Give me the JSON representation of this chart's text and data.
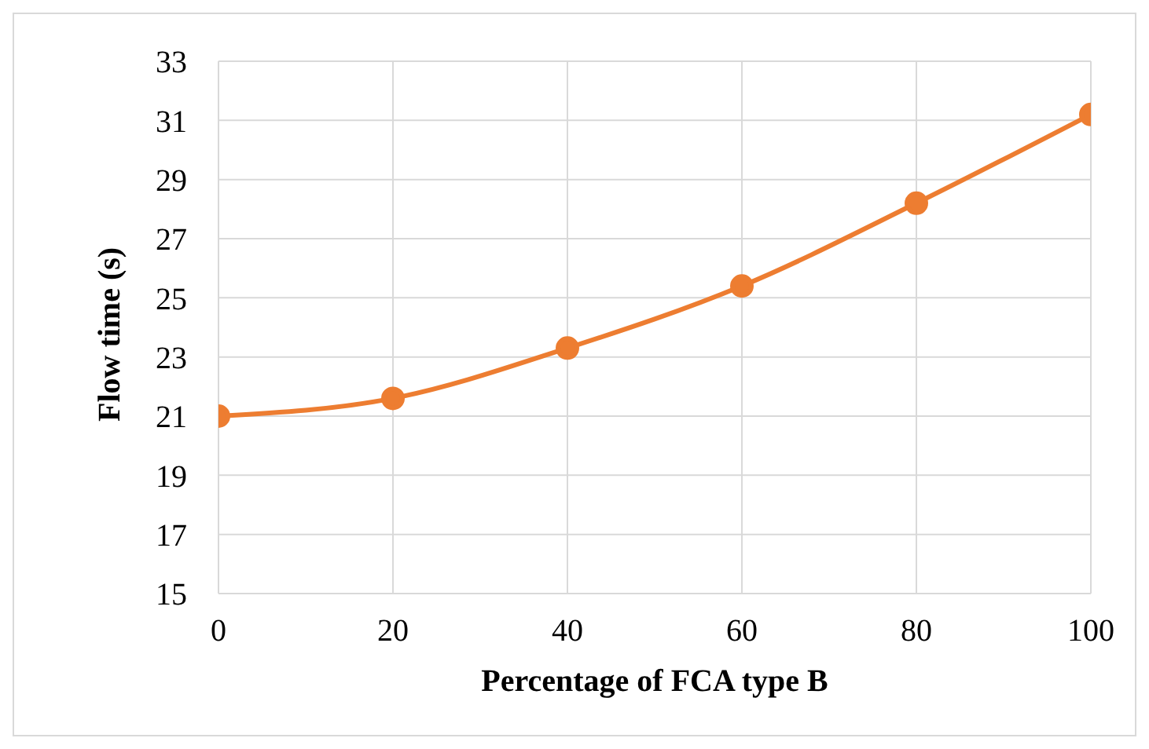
{
  "chart_data": {
    "type": "line",
    "xlabel": "Percentage of FCA type B",
    "ylabel": "Flow time (s)",
    "x": [
      0,
      20,
      40,
      60,
      80,
      100
    ],
    "series": [
      {
        "color": "#ed7d31",
        "values": [
          21.0,
          21.6,
          23.3,
          25.4,
          28.2,
          31.2
        ]
      }
    ],
    "xlim": [
      0,
      100
    ],
    "xticks": [
      0,
      20,
      40,
      60,
      80,
      100
    ],
    "ylim": [
      15,
      33
    ],
    "yticks": [
      15,
      17,
      19,
      21,
      23,
      25,
      27,
      29,
      31,
      33
    ],
    "grid": true,
    "marker": "circle",
    "legend": false
  }
}
